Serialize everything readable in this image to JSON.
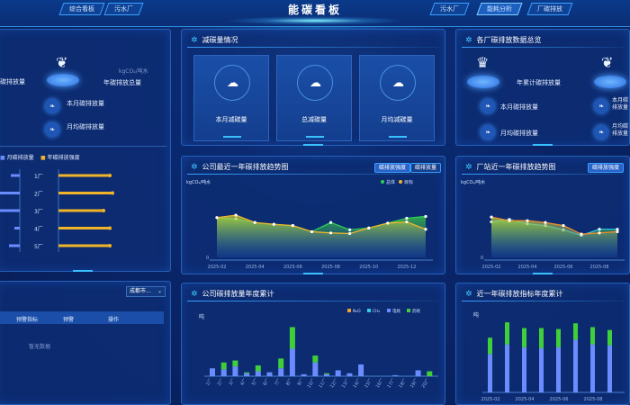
{
  "header": {
    "title": "能碳看板",
    "nav_left": [
      "综合看板",
      "污水厂"
    ],
    "nav_right": [
      "污水厂",
      "能耗分析",
      "厂碳排放"
    ],
    "active_nav": "能耗分析"
  },
  "left_top": {
    "total_label": "年碳排放总量",
    "rows": [
      "本月碳排放量",
      "月均碳排放量"
    ],
    "left_label": "碳排放量",
    "unit": "kgCO₂/吨水",
    "legend": [
      "月碳排放量",
      "年碳排放强度"
    ],
    "categories": [
      "1厂",
      "2厂",
      "3厂",
      "4厂",
      "5厂"
    ],
    "orange_values": [
      57,
      60,
      50,
      57,
      57
    ],
    "blue_values": [
      10,
      22,
      22,
      6,
      12
    ]
  },
  "left_bottom": {
    "select_value": "成都市...",
    "columns": [
      "预警指标",
      "预警",
      "操作"
    ],
    "empty_text": "暂无数据"
  },
  "reduction": {
    "title": "减碳量情况",
    "cards": [
      "本月减碳量",
      "总减碳量",
      "月均减碳量"
    ]
  },
  "overview": {
    "title": "各厂碳排放数据总览",
    "total_label": "年累计碳排放量",
    "rows": [
      "本月碳排放量",
      "月均碳排放量"
    ],
    "right_rows": [
      "本月碳排放量",
      "月均碳排放量"
    ]
  },
  "chart_data": [
    {
      "type": "area",
      "id": "company_trend",
      "title": "公司最近一年碳排放趋势图",
      "buttons": [
        "碳排放强度",
        "碳排放量"
      ],
      "ylabel": "kgCO₂/吨水",
      "categories": [
        "2025-02",
        "2025-03",
        "2025-04",
        "2025-05",
        "2025-06",
        "2025-07",
        "2025-08",
        "2025-09",
        "2025-10",
        "2025-11",
        "2025-12",
        "2026-01"
      ],
      "tick_labels": [
        "2025-02",
        "2025-04",
        "2025-06",
        "2025-08",
        "2025-10",
        "2025-12"
      ],
      "ylim": [
        0,
        1
      ],
      "y_tick": "0",
      "legend": [
        "总体",
        "目标"
      ],
      "series": [
        {
          "name": "总体",
          "color": "#2ecc55",
          "values": [
            0.65,
            0.63,
            0.57,
            0.54,
            0.52,
            0.42,
            0.57,
            0.45,
            0.48,
            0.56,
            0.64,
            0.67
          ]
        },
        {
          "name": "目标",
          "color": "#f0b429",
          "values": [
            0.65,
            0.69,
            0.57,
            0.54,
            0.52,
            0.42,
            0.4,
            0.39,
            0.48,
            0.56,
            0.58,
            0.46
          ]
        }
      ]
    },
    {
      "type": "area",
      "id": "plant_trend",
      "title": "厂站近一年碳排放趋势图",
      "buttons": [
        "碳排放强度"
      ],
      "ylabel": "kgCO₂/吨水",
      "categories": [
        "2025-02",
        "2025-03",
        "2025-04",
        "2025-05",
        "2025-06",
        "2025-07",
        "2025-08",
        "2025-09"
      ],
      "tick_labels": [
        "2025-02",
        "2025-04",
        "2025-06",
        "2025-08"
      ],
      "ylim": [
        0,
        1
      ],
      "y_tick": "0",
      "series": [
        {
          "color": "#2fc8e0",
          "values": [
            0.58,
            0.62,
            0.55,
            0.52,
            0.45,
            0.36,
            0.46,
            0.46
          ]
        },
        {
          "color": "#f08a29",
          "values": [
            0.66,
            0.6,
            0.6,
            0.57,
            0.52,
            0.38,
            0.4,
            0.42
          ]
        }
      ]
    },
    {
      "type": "bar",
      "stacked": true,
      "id": "company_annual",
      "title": "公司碳排放量年度累计",
      "ylabel": "吨",
      "legend": [
        "N₂O",
        "CH₄",
        "电耗",
        "药耗"
      ],
      "legend_colors": [
        "#f0a030",
        "#2fd0e0",
        "#6a8cff",
        "#3fcf3a"
      ],
      "categories": [
        "1厂",
        "2厂",
        "3厂",
        "4厂",
        "5厂",
        "6厂",
        "7厂",
        "8厂",
        "9厂",
        "10厂",
        "11厂",
        "12厂",
        "13厂",
        "14厂",
        "15厂",
        "16厂",
        "17厂",
        "18厂",
        "19厂",
        "20厂"
      ],
      "series": [
        {
          "name": "电耗",
          "values": [
            8,
            7,
            10,
            3,
            5,
            4,
            8,
            28,
            2,
            14,
            2,
            6,
            3,
            12,
            0,
            0,
            1,
            0,
            6,
            0
          ]
        },
        {
          "name": "药耗",
          "values": [
            0,
            7,
            6,
            1,
            6,
            0,
            10,
            22,
            0,
            7,
            1,
            0,
            0,
            0,
            0,
            0,
            0,
            0,
            0,
            5
          ]
        }
      ],
      "ylim": [
        0,
        55
      ]
    },
    {
      "type": "bar",
      "stacked": true,
      "id": "recent_annual",
      "title": "近一年碳排放指标年度累计",
      "ylabel": "吨",
      "categories": [
        "2025-02",
        "2025-03",
        "2025-04",
        "2025-05",
        "2025-06",
        "2025-07",
        "2025-08",
        "2025-09"
      ],
      "tick_labels": [
        "2025-02",
        "2025-04",
        "2025-06",
        "2025-08"
      ],
      "series": [
        {
          "name": "电耗",
          "values": [
            40,
            50,
            47,
            46,
            47,
            55,
            50,
            49
          ]
        },
        {
          "name": "药耗",
          "values": [
            17,
            23,
            20,
            21,
            19,
            17,
            18,
            16
          ]
        }
      ],
      "ylim": [
        0,
        75
      ]
    }
  ]
}
